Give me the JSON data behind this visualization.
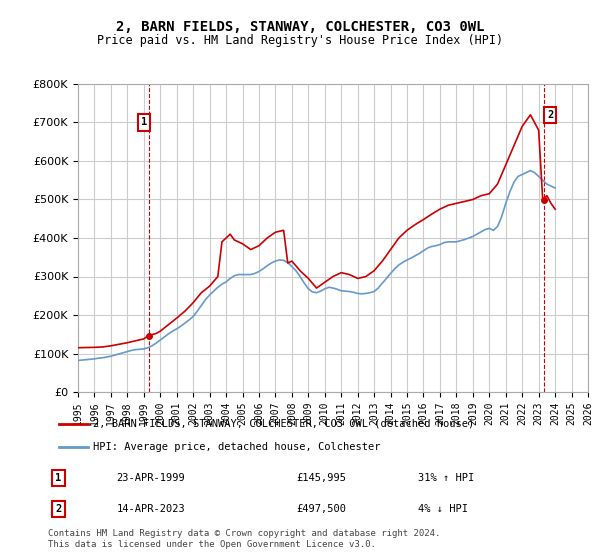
{
  "title": "2, BARN FIELDS, STANWAY, COLCHESTER, CO3 0WL",
  "subtitle": "Price paid vs. HM Land Registry's House Price Index (HPI)",
  "legend_property": "2, BARN FIELDS, STANWAY, COLCHESTER, CO3 0WL (detached house)",
  "legend_hpi": "HPI: Average price, detached house, Colchester",
  "footer": "Contains HM Land Registry data © Crown copyright and database right 2024.\nThis data is licensed under the Open Government Licence v3.0.",
  "sale1_label": "1",
  "sale1_date": "23-APR-1999",
  "sale1_price": "£145,995",
  "sale1_hpi": "31% ↑ HPI",
  "sale2_label": "2",
  "sale2_date": "14-APR-2023",
  "sale2_price": "£497,500",
  "sale2_hpi": "4% ↓ HPI",
  "property_color": "#cc0000",
  "hpi_color": "#6699cc",
  "background_color": "#ffffff",
  "grid_color": "#cccccc",
  "ylim": [
    0,
    800000
  ],
  "yticks": [
    0,
    100000,
    200000,
    300000,
    400000,
    500000,
    600000,
    700000,
    800000
  ],
  "hpi_data": {
    "years": [
      1995.0,
      1995.25,
      1995.5,
      1995.75,
      1996.0,
      1996.25,
      1996.5,
      1996.75,
      1997.0,
      1997.25,
      1997.5,
      1997.75,
      1998.0,
      1998.25,
      1998.5,
      1998.75,
      1999.0,
      1999.25,
      1999.5,
      1999.75,
      2000.0,
      2000.25,
      2000.5,
      2000.75,
      2001.0,
      2001.25,
      2001.5,
      2001.75,
      2002.0,
      2002.25,
      2002.5,
      2002.75,
      2003.0,
      2003.25,
      2003.5,
      2003.75,
      2004.0,
      2004.25,
      2004.5,
      2004.75,
      2005.0,
      2005.25,
      2005.5,
      2005.75,
      2006.0,
      2006.25,
      2006.5,
      2006.75,
      2007.0,
      2007.25,
      2007.5,
      2007.75,
      2008.0,
      2008.25,
      2008.5,
      2008.75,
      2009.0,
      2009.25,
      2009.5,
      2009.75,
      2010.0,
      2010.25,
      2010.5,
      2010.75,
      2011.0,
      2011.25,
      2011.5,
      2011.75,
      2012.0,
      2012.25,
      2012.5,
      2012.75,
      2013.0,
      2013.25,
      2013.5,
      2013.75,
      2014.0,
      2014.25,
      2014.5,
      2014.75,
      2015.0,
      2015.25,
      2015.5,
      2015.75,
      2016.0,
      2016.25,
      2016.5,
      2016.75,
      2017.0,
      2017.25,
      2017.5,
      2017.75,
      2018.0,
      2018.25,
      2018.5,
      2018.75,
      2019.0,
      2019.25,
      2019.5,
      2019.75,
      2020.0,
      2020.25,
      2020.5,
      2020.75,
      2021.0,
      2021.25,
      2021.5,
      2021.75,
      2022.0,
      2022.25,
      2022.5,
      2022.75,
      2023.0,
      2023.25,
      2023.5,
      2023.75,
      2024.0
    ],
    "values": [
      82000,
      83000,
      84000,
      85000,
      86000,
      88000,
      89000,
      91000,
      93000,
      96000,
      99000,
      102000,
      105000,
      108000,
      110000,
      111000,
      112000,
      115000,
      120000,
      127000,
      135000,
      143000,
      151000,
      158000,
      164000,
      171000,
      179000,
      187000,
      196000,
      210000,
      225000,
      240000,
      252000,
      262000,
      272000,
      280000,
      286000,
      295000,
      302000,
      305000,
      305000,
      305000,
      305000,
      308000,
      313000,
      320000,
      328000,
      335000,
      340000,
      343000,
      342000,
      336000,
      326000,
      315000,
      300000,
      283000,
      268000,
      260000,
      258000,
      262000,
      268000,
      272000,
      270000,
      267000,
      263000,
      262000,
      261000,
      259000,
      256000,
      255000,
      256000,
      258000,
      261000,
      270000,
      283000,
      295000,
      308000,
      320000,
      330000,
      337000,
      343000,
      348000,
      354000,
      360000,
      367000,
      374000,
      378000,
      380000,
      383000,
      388000,
      390000,
      390000,
      390000,
      393000,
      396000,
      400000,
      404000,
      410000,
      416000,
      422000,
      425000,
      420000,
      430000,
      455000,
      490000,
      520000,
      545000,
      560000,
      565000,
      570000,
      575000,
      570000,
      560000,
      550000,
      540000,
      535000,
      530000
    ]
  },
  "property_data": {
    "years": [
      1995.0,
      1995.5,
      1996.0,
      1996.5,
      1997.0,
      1997.5,
      1998.0,
      1998.5,
      1999.0,
      1999.25,
      1999.75,
      2000.0,
      2000.5,
      2001.0,
      2001.5,
      2002.0,
      2002.5,
      2003.0,
      2003.5,
      2003.75,
      2004.0,
      2004.25,
      2004.5,
      2005.0,
      2005.5,
      2006.0,
      2006.5,
      2007.0,
      2007.5,
      2007.75,
      2008.0,
      2008.5,
      2009.0,
      2009.5,
      2010.0,
      2010.5,
      2011.0,
      2011.5,
      2012.0,
      2012.5,
      2013.0,
      2013.5,
      2014.0,
      2014.5,
      2015.0,
      2015.5,
      2016.0,
      2016.5,
      2017.0,
      2017.5,
      2018.0,
      2018.5,
      2019.0,
      2019.5,
      2020.0,
      2020.5,
      2021.0,
      2021.5,
      2022.0,
      2022.5,
      2022.75,
      2023.0,
      2023.25,
      2023.5,
      2023.75,
      2024.0
    ],
    "values": [
      115000,
      115500,
      116000,
      117000,
      120000,
      124000,
      128000,
      133000,
      138000,
      145995,
      152000,
      158000,
      175000,
      192000,
      210000,
      232000,
      258000,
      275000,
      300000,
      390000,
      400000,
      410000,
      395000,
      385000,
      370000,
      380000,
      400000,
      415000,
      420000,
      335000,
      340000,
      315000,
      295000,
      270000,
      285000,
      300000,
      310000,
      305000,
      295000,
      300000,
      315000,
      340000,
      370000,
      400000,
      420000,
      435000,
      448000,
      462000,
      475000,
      485000,
      490000,
      495000,
      500000,
      510000,
      515000,
      540000,
      590000,
      640000,
      690000,
      720000,
      700000,
      680000,
      497500,
      510000,
      490000,
      475000
    ]
  },
  "sale1_x": 1999.3,
  "sale1_y": 145995,
  "sale2_x": 2023.3,
  "sale2_y": 497500,
  "xlim": [
    1995,
    2026
  ],
  "xticks": [
    1995,
    1996,
    1997,
    1998,
    1999,
    2000,
    2001,
    2002,
    2003,
    2004,
    2005,
    2006,
    2007,
    2008,
    2009,
    2010,
    2011,
    2012,
    2013,
    2014,
    2015,
    2016,
    2017,
    2018,
    2019,
    2020,
    2021,
    2022,
    2023,
    2024,
    2025,
    2026
  ]
}
